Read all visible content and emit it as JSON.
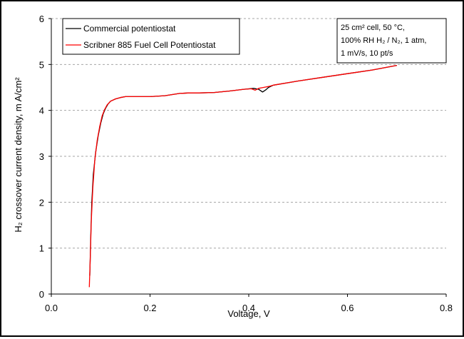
{
  "chart_data": {
    "type": "line",
    "xlabel": "Voltage, V",
    "ylabel": "H₂ crossover current density, m A/cm²",
    "xlim": [
      0.0,
      0.8
    ],
    "ylim": [
      0,
      6
    ],
    "x_ticks": [
      "0.0",
      "0.2",
      "0.4",
      "0.6",
      "0.8"
    ],
    "y_ticks": [
      "0",
      "1",
      "2",
      "3",
      "4",
      "5",
      "6"
    ],
    "grid": "horizontal dashed",
    "legend_position": "top-left",
    "annotation": [
      "25 cm² cell, 50 °C,",
      "100% RH H₂ / N₂, 1 atm,",
      "1 mV/s, 10 pt/s"
    ],
    "series": [
      {
        "name": "Commercial potentiostat",
        "color": "#000000",
        "points": [
          [
            0.078,
            0.4
          ],
          [
            0.08,
            1.3
          ],
          [
            0.082,
            2.0
          ],
          [
            0.085,
            2.6
          ],
          [
            0.09,
            3.1
          ],
          [
            0.095,
            3.45
          ],
          [
            0.1,
            3.72
          ],
          [
            0.105,
            3.92
          ],
          [
            0.11,
            4.05
          ],
          [
            0.115,
            4.14
          ],
          [
            0.12,
            4.2
          ],
          [
            0.13,
            4.25
          ],
          [
            0.14,
            4.28
          ],
          [
            0.15,
            4.3
          ],
          [
            0.17,
            4.3
          ],
          [
            0.2,
            4.3
          ],
          [
            0.23,
            4.32
          ],
          [
            0.26,
            4.37
          ],
          [
            0.28,
            4.38
          ],
          [
            0.3,
            4.38
          ],
          [
            0.33,
            4.39
          ],
          [
            0.36,
            4.42
          ],
          [
            0.39,
            4.46
          ],
          [
            0.41,
            4.48
          ],
          [
            0.42,
            4.46
          ],
          [
            0.428,
            4.4
          ],
          [
            0.435,
            4.45
          ],
          [
            0.44,
            4.5
          ],
          [
            0.45,
            4.55
          ],
          [
            0.5,
            4.64
          ],
          [
            0.55,
            4.72
          ],
          [
            0.6,
            4.8
          ],
          [
            0.65,
            4.88
          ],
          [
            0.7,
            4.98
          ]
        ]
      },
      {
        "name": "Scribner 885 Fuel Cell Potentiostat",
        "color": "#ff0000",
        "points": [
          [
            0.077,
            0.15
          ],
          [
            0.079,
            0.8
          ],
          [
            0.081,
            1.6
          ],
          [
            0.084,
            2.3
          ],
          [
            0.088,
            2.9
          ],
          [
            0.093,
            3.35
          ],
          [
            0.098,
            3.65
          ],
          [
            0.103,
            3.88
          ],
          [
            0.108,
            4.02
          ],
          [
            0.113,
            4.12
          ],
          [
            0.12,
            4.2
          ],
          [
            0.13,
            4.25
          ],
          [
            0.14,
            4.28
          ],
          [
            0.15,
            4.3
          ],
          [
            0.17,
            4.3
          ],
          [
            0.2,
            4.3
          ],
          [
            0.23,
            4.32
          ],
          [
            0.26,
            4.37
          ],
          [
            0.28,
            4.38
          ],
          [
            0.3,
            4.38
          ],
          [
            0.33,
            4.39
          ],
          [
            0.36,
            4.42
          ],
          [
            0.39,
            4.46
          ],
          [
            0.405,
            4.47
          ],
          [
            0.413,
            4.44
          ],
          [
            0.42,
            4.48
          ],
          [
            0.43,
            4.5
          ],
          [
            0.44,
            4.52
          ],
          [
            0.45,
            4.55
          ],
          [
            0.5,
            4.64
          ],
          [
            0.55,
            4.72
          ],
          [
            0.6,
            4.8
          ],
          [
            0.65,
            4.88
          ],
          [
            0.7,
            4.98
          ]
        ]
      }
    ]
  }
}
